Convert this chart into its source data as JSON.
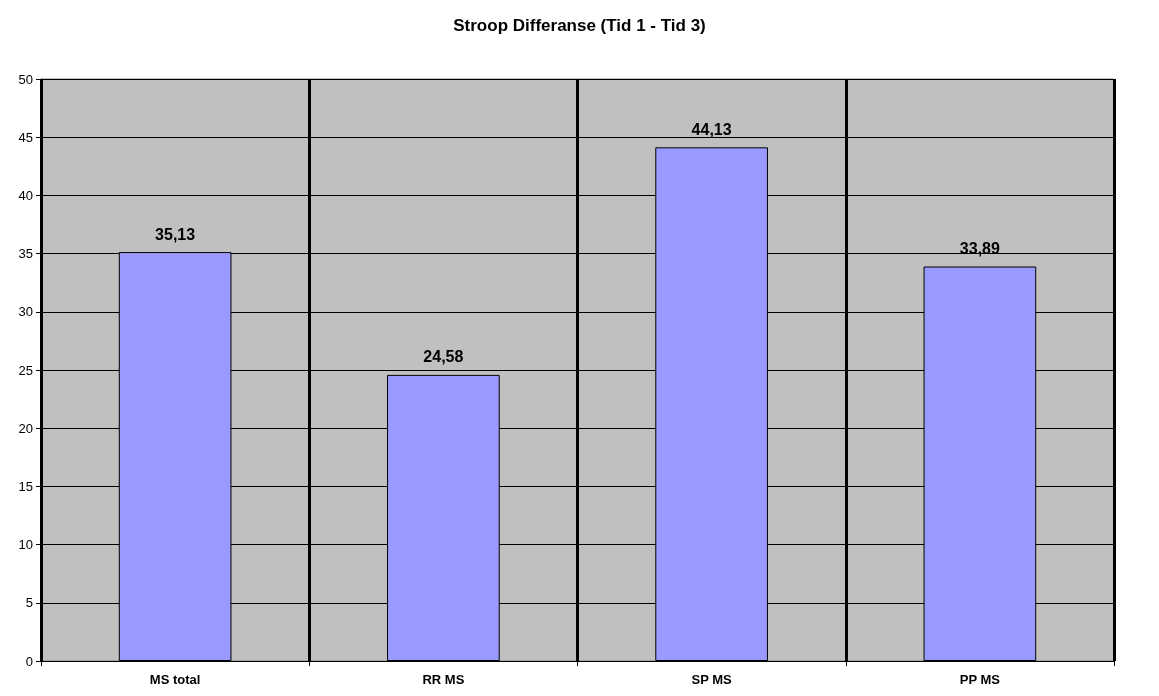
{
  "chart_data": {
    "type": "bar",
    "title": "Stroop Differanse (Tid 1 - Tid 3)",
    "categories": [
      "MS total",
      "RR MS",
      "SP MS",
      "PP MS"
    ],
    "values": [
      35.13,
      24.58,
      44.13,
      33.89
    ],
    "value_labels": [
      "35,13",
      "24,58",
      "44,13",
      "33,89"
    ],
    "color": "#9999ff",
    "ylim": [
      0,
      50
    ],
    "yticks": [
      0,
      5,
      10,
      15,
      20,
      25,
      30,
      35,
      40,
      45,
      50
    ],
    "grid": true
  }
}
